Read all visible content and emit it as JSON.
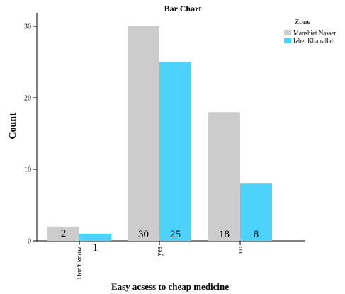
{
  "chart_data": {
    "type": "bar",
    "title": "Bar Chart",
    "xlabel": "Easy acsess to cheap medicine",
    "ylabel": "Count",
    "categories": [
      "Don't know",
      "yes",
      "no"
    ],
    "series": [
      {
        "name": "Manshiet Nasser",
        "values": [
          2,
          30,
          18
        ],
        "color": "#cccccc"
      },
      {
        "name": "Izbet Khairallah",
        "values": [
          1,
          25,
          8
        ],
        "color": "#4dd2fc"
      }
    ],
    "ylim": [
      0,
      32
    ],
    "yticks": [
      0,
      10,
      20,
      30
    ],
    "legend_title": "Zone",
    "legend_position": "top-right",
    "grid": false
  }
}
